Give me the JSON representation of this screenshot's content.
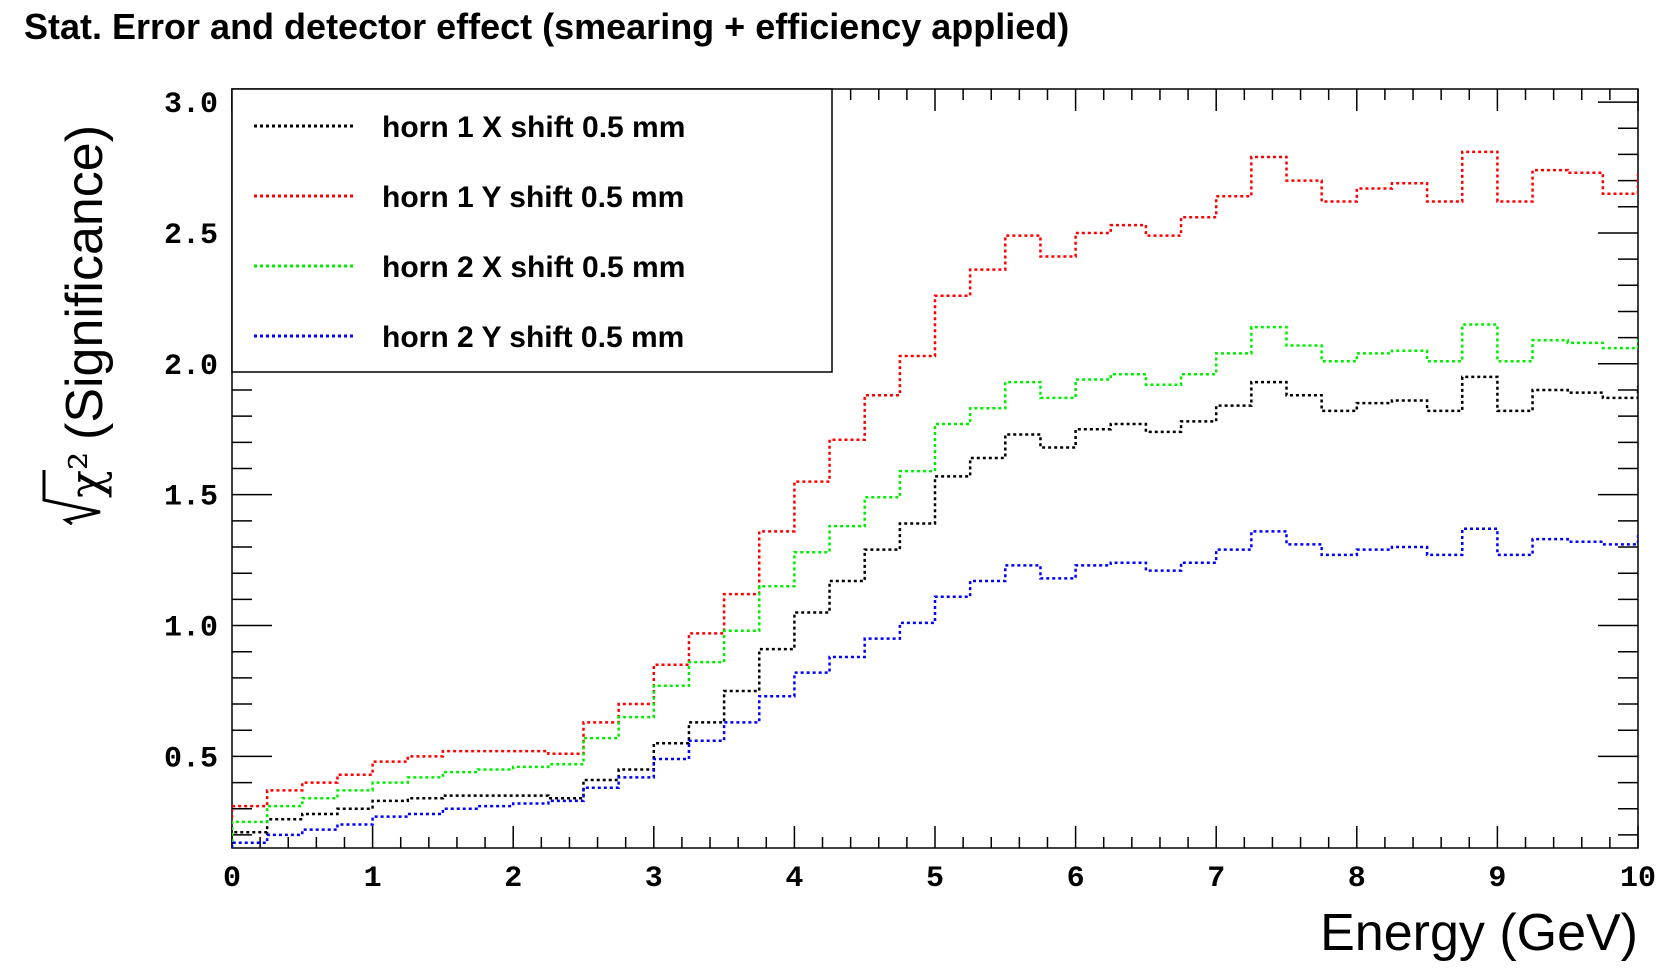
{
  "chart_data": {
    "type": "line",
    "title": "Stat. Error and detector effect (smearing + efficiency applied)",
    "xlabel": "Energy (GeV)",
    "ylabel": "(Significance)",
    "ylabel_math": "√χ²",
    "xlim": [
      0,
      10
    ],
    "ylim": [
      0.15,
      3.05
    ],
    "x_ticks": [
      0,
      1,
      2,
      3,
      4,
      5,
      6,
      7,
      8,
      9,
      10
    ],
    "x_tick_labels": [
      "0",
      "1",
      "2",
      "3",
      "4",
      "5",
      "6",
      "7",
      "8",
      "9",
      "10"
    ],
    "y_ticks": [
      0.5,
      1.0,
      1.5,
      2.0,
      2.5,
      3.0
    ],
    "y_tick_labels": [
      "0.5",
      "1.0",
      "1.5",
      "2.0",
      "2.5",
      "3.0"
    ],
    "bin_width": 0.25,
    "bin_edges_start": 0,
    "grid": false,
    "legend_position": "top-left",
    "series": [
      {
        "name": "horn 1 X shift 0.5 mm",
        "color": "#000000",
        "values": [
          0.21,
          0.26,
          0.28,
          0.3,
          0.33,
          0.34,
          0.35,
          0.35,
          0.35,
          0.34,
          0.41,
          0.45,
          0.55,
          0.63,
          0.75,
          0.91,
          1.05,
          1.17,
          1.29,
          1.39,
          1.57,
          1.64,
          1.73,
          1.68,
          1.75,
          1.77,
          1.74,
          1.78,
          1.84,
          1.93,
          1.88,
          1.82,
          1.85,
          1.86,
          1.82,
          1.95,
          1.82,
          1.9,
          1.89,
          1.87,
          1.91
        ]
      },
      {
        "name": "horn 1 Y shift 0.5 mm",
        "color": "#ff0000",
        "values": [
          0.31,
          0.37,
          0.4,
          0.43,
          0.48,
          0.5,
          0.52,
          0.52,
          0.52,
          0.51,
          0.63,
          0.7,
          0.85,
          0.97,
          1.12,
          1.36,
          1.55,
          1.71,
          1.88,
          2.03,
          2.26,
          2.36,
          2.49,
          2.41,
          2.5,
          2.53,
          2.49,
          2.56,
          2.64,
          2.79,
          2.7,
          2.62,
          2.67,
          2.69,
          2.62,
          2.81,
          2.62,
          2.74,
          2.73,
          2.65,
          2.72
        ]
      },
      {
        "name": "horn 2 X shift 0.5 mm",
        "color": "#00ee00",
        "values": [
          0.25,
          0.31,
          0.34,
          0.37,
          0.4,
          0.42,
          0.44,
          0.45,
          0.46,
          0.47,
          0.57,
          0.65,
          0.77,
          0.86,
          0.98,
          1.15,
          1.28,
          1.38,
          1.49,
          1.59,
          1.77,
          1.83,
          1.93,
          1.87,
          1.94,
          1.96,
          1.92,
          1.96,
          2.04,
          2.14,
          2.07,
          2.01,
          2.04,
          2.05,
          2.01,
          2.15,
          2.01,
          2.09,
          2.08,
          2.06,
          2.1
        ]
      },
      {
        "name": "horn 2 Y shift 0.5 mm",
        "color": "#0000ff",
        "values": [
          0.17,
          0.2,
          0.22,
          0.24,
          0.27,
          0.28,
          0.3,
          0.31,
          0.32,
          0.33,
          0.38,
          0.42,
          0.49,
          0.56,
          0.63,
          0.73,
          0.82,
          0.88,
          0.95,
          1.01,
          1.11,
          1.17,
          1.23,
          1.18,
          1.23,
          1.24,
          1.21,
          1.24,
          1.29,
          1.36,
          1.31,
          1.27,
          1.29,
          1.3,
          1.27,
          1.37,
          1.27,
          1.33,
          1.32,
          1.31,
          1.34
        ]
      }
    ]
  }
}
